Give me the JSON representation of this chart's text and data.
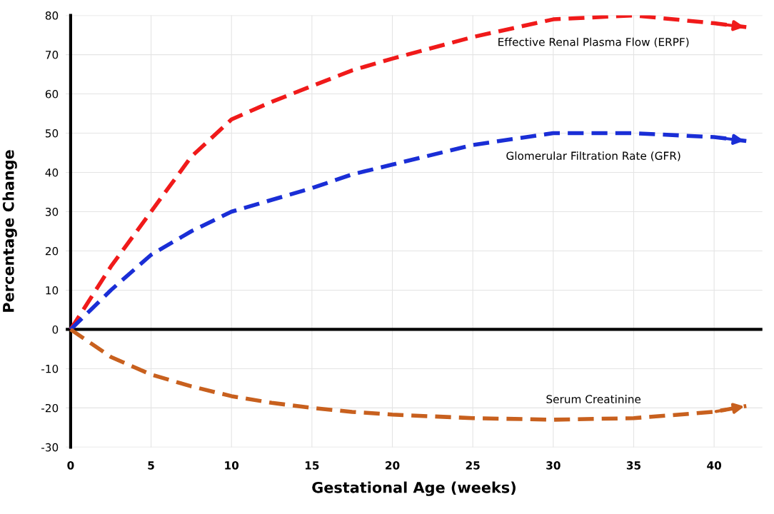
{
  "chart_data": {
    "type": "line",
    "xlabel": "Gestational Age (weeks)",
    "ylabel": "Percentage Change",
    "x": [
      0,
      2.5,
      5,
      7.5,
      10,
      12.5,
      15,
      17.5,
      20,
      25,
      30,
      35,
      40,
      42
    ],
    "series": [
      {
        "color": "#f01a1a",
        "values": [
          0,
          16,
          30,
          44,
          53.5,
          58,
          62,
          66,
          69,
          74.5,
          79,
          80,
          78,
          77
        ]
      },
      {
        "color": "#1a2ed6",
        "values": [
          0,
          10,
          19,
          25,
          30,
          33,
          36,
          39.5,
          42,
          47,
          50,
          50,
          49,
          48
        ]
      },
      {
        "color": "#c8601e",
        "values": [
          0,
          -7,
          -11.5,
          -14.5,
          -17,
          -18.7,
          -20,
          -21,
          -21.7,
          -22.6,
          -23,
          -22.6,
          -21,
          -19.5
        ]
      }
    ],
    "annotations": [
      "Effective Renal Plasma Flow (ERPF)",
      "Glomerular Filtration Rate (GFR)",
      "Serum Creatinine"
    ],
    "ref_lines": [
      {
        "axis": "y",
        "value": 0,
        "color": "#000000"
      }
    ],
    "xlim": [
      -0.3,
      43
    ],
    "ylim": [
      -30,
      80
    ],
    "xticks": [
      0,
      5,
      10,
      15,
      20,
      25,
      30,
      35,
      40
    ],
    "yticks": [
      -30,
      -20,
      -10,
      0,
      10,
      20,
      30,
      40,
      50,
      60,
      70,
      80
    ],
    "grid": true,
    "line_style": "dashed",
    "legend": false
  }
}
